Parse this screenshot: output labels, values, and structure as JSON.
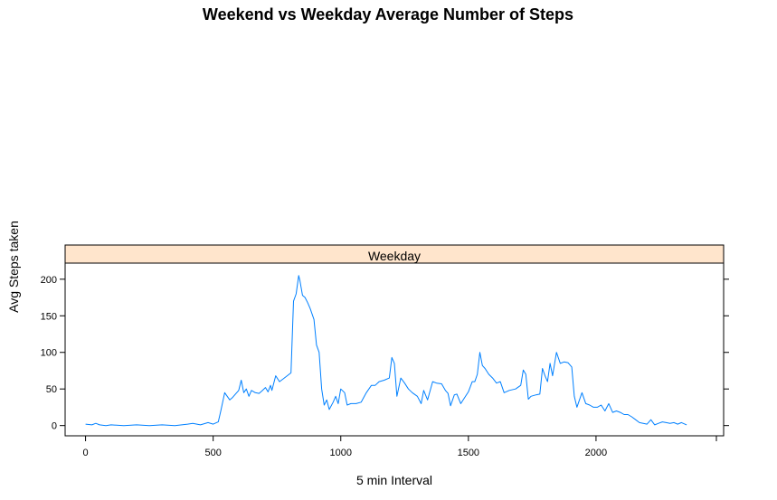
{
  "chart_data": {
    "type": "line",
    "title": "Weekend vs Weekday Average Number of Steps",
    "xlabel": "5 min Interval",
    "ylabel": "Avg Steps taken",
    "panel_label": "Weekday",
    "xlim": [
      -80,
      2500
    ],
    "ylim": [
      -14,
      222
    ],
    "x_ticks": [
      0,
      500,
      1000,
      1500,
      2000
    ],
    "y_ticks": [
      0,
      50,
      100,
      150,
      200
    ],
    "line_color": "#0080ff",
    "strip_color": "#ffe5cc",
    "grid": false,
    "series": [
      {
        "x": [
          0,
          25,
          40,
          55,
          80,
          100,
          150,
          200,
          250,
          300,
          350,
          400,
          420,
          450,
          480,
          500,
          520,
          530,
          545,
          555,
          565,
          575,
          585,
          600,
          610,
          620,
          630,
          640,
          650,
          665,
          680,
          690,
          705,
          715,
          725,
          730,
          745,
          760,
          775,
          790,
          805,
          815,
          825,
          835,
          840,
          850,
          860,
          870,
          880,
          895,
          905,
          915,
          925,
          935,
          945,
          955,
          970,
          980,
          990,
          1000,
          1015,
          1025,
          1040,
          1060,
          1080,
          1100,
          1120,
          1135,
          1150,
          1170,
          1190,
          1200,
          1210,
          1220,
          1235,
          1250,
          1265,
          1280,
          1300,
          1315,
          1325,
          1340,
          1360,
          1375,
          1395,
          1410,
          1420,
          1430,
          1445,
          1455,
          1470,
          1485,
          1500,
          1515,
          1525,
          1535,
          1545,
          1555,
          1565,
          1580,
          1595,
          1610,
          1625,
          1640,
          1660,
          1685,
          1705,
          1715,
          1725,
          1735,
          1745,
          1765,
          1780,
          1790,
          1800,
          1810,
          1820,
          1830,
          1845,
          1860,
          1875,
          1890,
          1905,
          1915,
          1925,
          1935,
          1945,
          1960,
          1975,
          1990,
          2005,
          2020,
          2035,
          2050,
          2065,
          2080,
          2095,
          2110,
          2125,
          2140,
          2155,
          2170,
          2185,
          2200,
          2215,
          2230,
          2245,
          2260,
          2275,
          2290,
          2305,
          2320,
          2335,
          2355
        ],
        "y": [
          2,
          1,
          3,
          1,
          0,
          1,
          0,
          1,
          0,
          1,
          0,
          2,
          3,
          1,
          4,
          2,
          5,
          20,
          45,
          40,
          35,
          38,
          42,
          48,
          62,
          45,
          50,
          40,
          48,
          45,
          44,
          47,
          52,
          46,
          55,
          48,
          68,
          60,
          64,
          68,
          72,
          170,
          180,
          205,
          198,
          178,
          175,
          168,
          160,
          145,
          110,
          100,
          50,
          28,
          35,
          22,
          32,
          40,
          30,
          50,
          45,
          28,
          30,
          30,
          32,
          45,
          55,
          55,
          60,
          62,
          65,
          93,
          85,
          40,
          65,
          58,
          50,
          45,
          40,
          30,
          48,
          35,
          60,
          58,
          57,
          48,
          44,
          27,
          42,
          43,
          30,
          38,
          46,
          60,
          60,
          70,
          100,
          82,
          78,
          70,
          65,
          58,
          60,
          45,
          48,
          50,
          55,
          76,
          70,
          36,
          40,
          42,
          43,
          78,
          68,
          60,
          85,
          68,
          100,
          85,
          87,
          86,
          80,
          40,
          25,
          35,
          45,
          30,
          28,
          25,
          25,
          28,
          20,
          30,
          18,
          20,
          18,
          15,
          15,
          12,
          8,
          4,
          3,
          2,
          8,
          1,
          3,
          5,
          4,
          3,
          4,
          2,
          4,
          1
        ]
      }
    ]
  }
}
